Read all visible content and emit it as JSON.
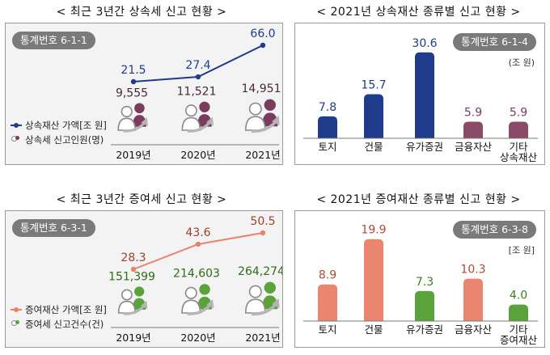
{
  "titles": {
    "top_left": "< 최근 3년간 상속세 신고 현황 >",
    "top_right": "< 2021년 상속재산 종류별 신고 현황 >",
    "bottom_left": "< 최근 3년간 증여세 신고 현황 >",
    "bottom_right": "< 2021년 증여재산 종류별 신고 현황 >"
  },
  "colors": {
    "inheritance_line": "#1f3c8c",
    "inheritance_people": "#7a3b5c",
    "gift_line": "#e8826a",
    "gift_people": "#5aa33a",
    "bar_navy": "#1f3c8c",
    "bar_plum": "#8a4a68",
    "bar_salmon": "#ea8570",
    "bar_green": "#5aa33a",
    "badge": "#7a7a7a"
  },
  "chart_data": [
    {
      "id": "inheritance-trend",
      "type": "line",
      "badge": "통계번호 6-1-1",
      "categories": [
        "2019년",
        "2020년",
        "2021년"
      ],
      "series": [
        {
          "name": "상속재산 가액(조 원)",
          "values": [
            21.5,
            27.4,
            66.0
          ],
          "labels": [
            "21.5",
            "27.4",
            "66.0"
          ]
        },
        {
          "name": "상속세 신고인원(명)",
          "values": [
            9555,
            11521,
            14951
          ],
          "labels": [
            "9,555",
            "11,521",
            "14,951"
          ]
        }
      ],
      "legend": {
        "line_label": "상속재산 가액[조 원]",
        "people_label": "상속세 신고인원(명)"
      }
    },
    {
      "id": "inheritance-by-type",
      "type": "bar",
      "badge": "통계번호 6-1-4",
      "unit": "(조 원)",
      "categories": [
        "토지",
        "건물",
        "유가증권",
        "금융자산",
        "기타\n상속재산"
      ],
      "values": [
        7.8,
        15.7,
        30.6,
        5.9,
        5.9
      ],
      "labels": [
        "7.8",
        "15.7",
        "30.6",
        "5.9",
        "5.9"
      ],
      "bar_colors": [
        "bar_navy",
        "bar_navy",
        "bar_navy",
        "bar_plum",
        "bar_plum"
      ],
      "label_color": "#1f3c8c",
      "label_colors": [
        "#1f3c8c",
        "#1f3c8c",
        "#1f3c8c",
        "#7a3b5c",
        "#7a3b5c"
      ],
      "ylim": [
        0,
        34
      ]
    },
    {
      "id": "gift-trend",
      "type": "line",
      "badge": "통계번호 6-3-1",
      "categories": [
        "2019년",
        "2020년",
        "2021년"
      ],
      "series": [
        {
          "name": "증여재산 가액(조 원)",
          "values": [
            28.3,
            43.6,
            50.5
          ],
          "labels": [
            "28.3",
            "43.6",
            "50.5"
          ]
        },
        {
          "name": "증여세 신고건수(건)",
          "values": [
            151399,
            214603,
            264274
          ],
          "labels": [
            "151,399",
            "214,603",
            "264,274"
          ]
        }
      ],
      "legend": {
        "line_label": "증여재산 가액[조 원]",
        "people_label": "증여세 신고건수(건)"
      }
    },
    {
      "id": "gift-by-type",
      "type": "bar",
      "badge": "통계번호 6-3-8",
      "unit": "[조 원]",
      "categories": [
        "토지",
        "건물",
        "유가증권",
        "금융자산",
        "기타\n증여재산"
      ],
      "values": [
        8.9,
        19.9,
        7.3,
        10.3,
        4.0
      ],
      "labels": [
        "8.9",
        "19.9",
        "7.3",
        "10.3",
        "4.0"
      ],
      "bar_colors": [
        "bar_salmon",
        "bar_salmon",
        "bar_green",
        "bar_salmon",
        "bar_green"
      ],
      "label_colors": [
        "#b04a36",
        "#b04a36",
        "#3f7d24",
        "#b04a36",
        "#3f7d24"
      ],
      "ylim": [
        0,
        22
      ]
    }
  ]
}
